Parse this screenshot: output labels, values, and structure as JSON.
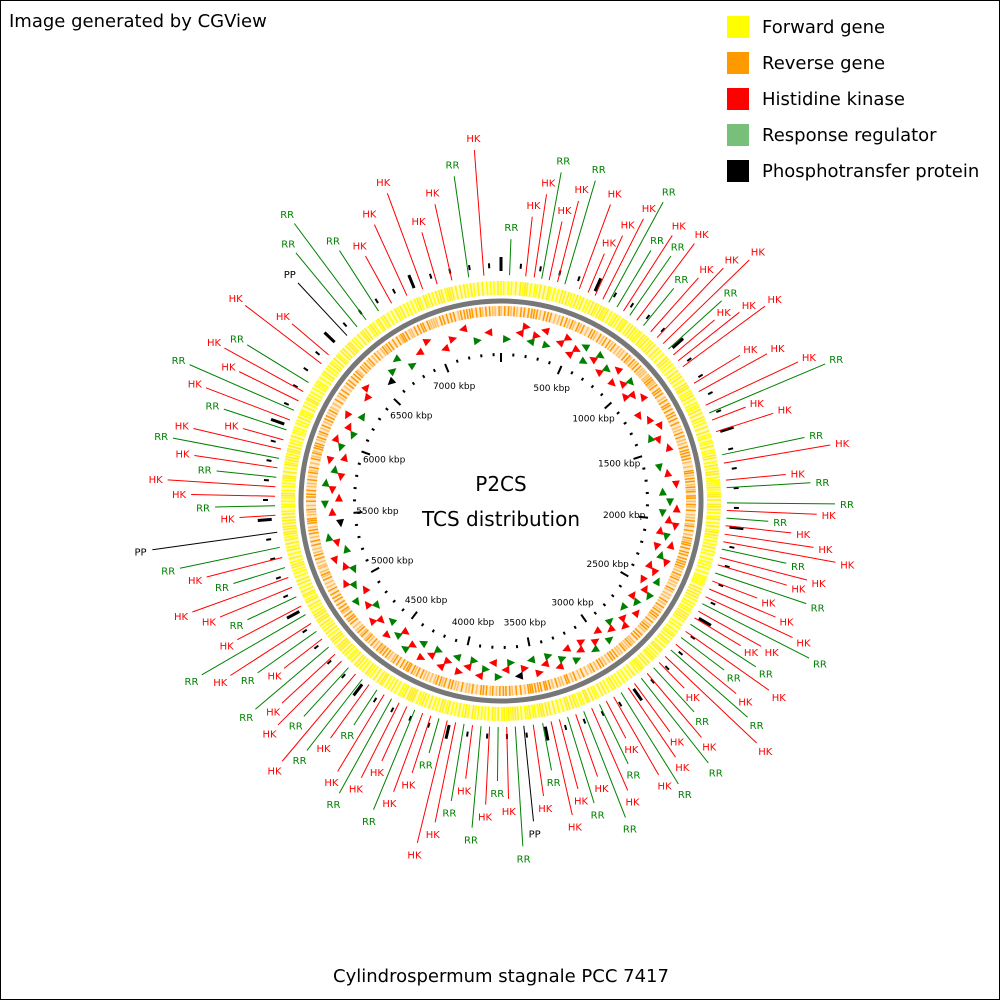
{
  "credit": "Image generated by CGView",
  "title_line1": "P2CS",
  "title_line2": "TCS distribution",
  "organism": "Cylindrospermum stagnale PCC 7417",
  "legend": [
    {
      "label": "Forward gene",
      "color": "#ffff00"
    },
    {
      "label": "Reverse gene",
      "color": "#ff9900"
    },
    {
      "label": "Histidine kinase",
      "color": "#ff0000"
    },
    {
      "label": "Response regulator",
      "color": "#78c07a"
    },
    {
      "label": "Phosphotransfer protein",
      "color": "#000000"
    }
  ],
  "genome_kbp": 7460,
  "ticks_kbp": [
    500,
    1000,
    1500,
    2000,
    2500,
    3000,
    3500,
    4000,
    4500,
    5000,
    5500,
    6000,
    6500,
    7000
  ],
  "tick_label_suffix": "kbp",
  "feature_type_labels": {
    "HK": "HK",
    "RR": "RR",
    "PP": "PP"
  },
  "feature_colors": {
    "HK": "#ff0000",
    "RR": "#008000",
    "PP": "#000000"
  },
  "features": [
    {
      "kbp": 45,
      "type": "RR"
    },
    {
      "kbp": 130,
      "type": "HK"
    },
    {
      "kbp": 175,
      "type": "HK"
    },
    {
      "kbp": 215,
      "type": "RR"
    },
    {
      "kbp": 255,
      "type": "HK"
    },
    {
      "kbp": 300,
      "type": "HK"
    },
    {
      "kbp": 340,
      "type": "RR"
    },
    {
      "kbp": 420,
      "type": "HK"
    },
    {
      "kbp": 470,
      "type": "HK"
    },
    {
      "kbp": 510,
      "type": "HK"
    },
    {
      "kbp": 555,
      "type": "HK"
    },
    {
      "kbp": 590,
      "type": "RR"
    },
    {
      "kbp": 640,
      "type": "RR"
    },
    {
      "kbp": 680,
      "type": "HK"
    },
    {
      "kbp": 720,
      "type": "RR"
    },
    {
      "kbp": 765,
      "type": "HK"
    },
    {
      "kbp": 810,
      "type": "RR"
    },
    {
      "kbp": 860,
      "type": "HK"
    },
    {
      "kbp": 905,
      "type": "HK"
    },
    {
      "kbp": 950,
      "type": "HK"
    },
    {
      "kbp": 990,
      "type": "RR"
    },
    {
      "kbp": 1030,
      "type": "HK"
    },
    {
      "kbp": 1070,
      "type": "HK"
    },
    {
      "kbp": 1110,
      "type": "HK"
    },
    {
      "kbp": 1215,
      "type": "HK"
    },
    {
      "kbp": 1265,
      "type": "HK"
    },
    {
      "kbp": 1345,
      "type": "HK"
    },
    {
      "kbp": 1390,
      "type": "RR"
    },
    {
      "kbp": 1430,
      "type": "HK"
    },
    {
      "kbp": 1495,
      "type": "HK"
    },
    {
      "kbp": 1620,
      "type": "RR"
    },
    {
      "kbp": 1665,
      "type": "HK"
    },
    {
      "kbp": 1755,
      "type": "HK"
    },
    {
      "kbp": 1795,
      "type": "RR"
    },
    {
      "kbp": 1875,
      "type": "RR"
    },
    {
      "kbp": 1915,
      "type": "HK"
    },
    {
      "kbp": 1955,
      "type": "RR"
    },
    {
      "kbp": 1995,
      "type": "HK"
    },
    {
      "kbp": 2040,
      "type": "HK"
    },
    {
      "kbp": 2080,
      "type": "HK"
    },
    {
      "kbp": 2120,
      "type": "RR"
    },
    {
      "kbp": 2165,
      "type": "HK"
    },
    {
      "kbp": 2205,
      "type": "HK"
    },
    {
      "kbp": 2250,
      "type": "RR"
    },
    {
      "kbp": 2295,
      "type": "HK"
    },
    {
      "kbp": 2340,
      "type": "HK"
    },
    {
      "kbp": 2385,
      "type": "HK"
    },
    {
      "kbp": 2425,
      "type": "RR"
    },
    {
      "kbp": 2470,
      "type": "HK"
    },
    {
      "kbp": 2510,
      "type": "HK"
    },
    {
      "kbp": 2550,
      "type": "RR"
    },
    {
      "kbp": 2595,
      "type": "HK"
    },
    {
      "kbp": 2635,
      "type": "RR"
    },
    {
      "kbp": 2680,
      "type": "HK"
    },
    {
      "kbp": 2720,
      "type": "RR"
    },
    {
      "kbp": 2765,
      "type": "HK"
    },
    {
      "kbp": 2810,
      "type": "HK"
    },
    {
      "kbp": 2850,
      "type": "RR"
    },
    {
      "kbp": 2895,
      "type": "HK"
    },
    {
      "kbp": 2935,
      "type": "RR"
    },
    {
      "kbp": 2980,
      "type": "HK"
    },
    {
      "kbp": 3020,
      "type": "HK"
    },
    {
      "kbp": 3065,
      "type": "RR"
    },
    {
      "kbp": 3110,
      "type": "HK"
    },
    {
      "kbp": 3155,
      "type": "HK"
    },
    {
      "kbp": 3195,
      "type": "RR"
    },
    {
      "kbp": 3240,
      "type": "HK"
    },
    {
      "kbp": 3285,
      "type": "RR"
    },
    {
      "kbp": 3330,
      "type": "HK"
    },
    {
      "kbp": 3375,
      "type": "RR"
    },
    {
      "kbp": 3420,
      "type": "HK"
    },
    {
      "kbp": 3465,
      "type": "HK"
    },
    {
      "kbp": 3510,
      "type": "RR"
    },
    {
      "kbp": 3560,
      "type": "HK"
    },
    {
      "kbp": 3610,
      "type": "PP"
    },
    {
      "kbp": 3655,
      "type": "RR"
    },
    {
      "kbp": 3700,
      "type": "HK"
    },
    {
      "kbp": 3745,
      "type": "RR"
    },
    {
      "kbp": 3790,
      "type": "HK"
    },
    {
      "kbp": 3835,
      "type": "RR"
    },
    {
      "kbp": 3880,
      "type": "HK"
    },
    {
      "kbp": 3925,
      "type": "RR"
    },
    {
      "kbp": 3970,
      "type": "HK"
    },
    {
      "kbp": 4015,
      "type": "HK"
    },
    {
      "kbp": 4060,
      "type": "RR"
    },
    {
      "kbp": 4105,
      "type": "HK"
    },
    {
      "kbp": 4150,
      "type": "HK"
    },
    {
      "kbp": 4195,
      "type": "RR"
    },
    {
      "kbp": 4240,
      "type": "HK"
    },
    {
      "kbp": 4285,
      "type": "HK"
    },
    {
      "kbp": 4330,
      "type": "RR"
    },
    {
      "kbp": 4375,
      "type": "HK"
    },
    {
      "kbp": 4420,
      "type": "RR"
    },
    {
      "kbp": 4470,
      "type": "HK"
    },
    {
      "kbp": 4515,
      "type": "RR"
    },
    {
      "kbp": 4560,
      "type": "HK"
    },
    {
      "kbp": 4610,
      "type": "RR"
    },
    {
      "kbp": 4660,
      "type": "HK"
    },
    {
      "kbp": 4710,
      "type": "HK"
    },
    {
      "kbp": 4760,
      "type": "RR"
    },
    {
      "kbp": 4815,
      "type": "HK"
    },
    {
      "kbp": 4865,
      "type": "RR"
    },
    {
      "kbp": 4915,
      "type": "HK"
    },
    {
      "kbp": 4970,
      "type": "RR"
    },
    {
      "kbp": 5020,
      "type": "HK"
    },
    {
      "kbp": 5075,
      "type": "RR"
    },
    {
      "kbp": 5130,
      "type": "HK"
    },
    {
      "kbp": 5185,
      "type": "HK"
    },
    {
      "kbp": 5240,
      "type": "RR"
    },
    {
      "kbp": 5295,
      "type": "HK"
    },
    {
      "kbp": 5350,
      "type": "RR"
    },
    {
      "kbp": 5430,
      "type": "PP"
    },
    {
      "kbp": 5520,
      "type": "HK"
    },
    {
      "kbp": 5570,
      "type": "RR"
    },
    {
      "kbp": 5620,
      "type": "HK"
    },
    {
      "kbp": 5670,
      "type": "HK"
    },
    {
      "kbp": 5720,
      "type": "RR"
    },
    {
      "kbp": 5770,
      "type": "HK"
    },
    {
      "kbp": 5820,
      "type": "RR"
    },
    {
      "kbp": 5870,
      "type": "HK"
    },
    {
      "kbp": 5920,
      "type": "HK"
    },
    {
      "kbp": 5975,
      "type": "RR"
    },
    {
      "kbp": 6030,
      "type": "HK"
    },
    {
      "kbp": 6085,
      "type": "RR"
    },
    {
      "kbp": 6140,
      "type": "HK"
    },
    {
      "kbp": 6195,
      "type": "HK"
    },
    {
      "kbp": 6250,
      "type": "RR"
    },
    {
      "kbp": 6370,
      "type": "HK"
    },
    {
      "kbp": 6430,
      "type": "HK"
    },
    {
      "kbp": 6570,
      "type": "PP"
    },
    {
      "kbp": 6640,
      "type": "RR"
    },
    {
      "kbp": 6700,
      "type": "RR"
    },
    {
      "kbp": 6780,
      "type": "RR"
    },
    {
      "kbp": 6860,
      "type": "HK"
    },
    {
      "kbp": 6950,
      "type": "HK"
    },
    {
      "kbp": 7040,
      "type": "HK"
    },
    {
      "kbp": 7120,
      "type": "HK"
    },
    {
      "kbp": 7200,
      "type": "HK"
    },
    {
      "kbp": 7290,
      "type": "RR"
    },
    {
      "kbp": 7370,
      "type": "HK"
    }
  ]
}
